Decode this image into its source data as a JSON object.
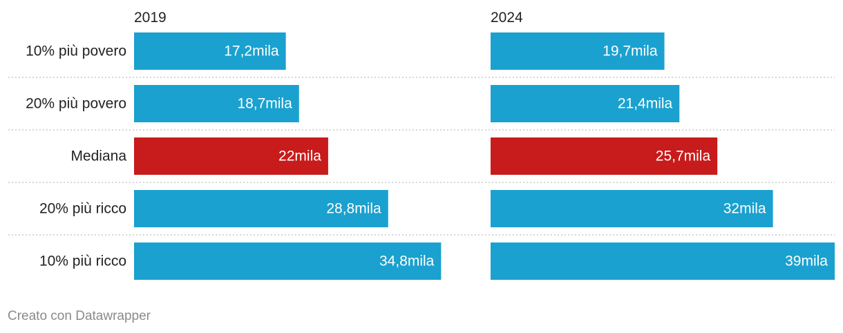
{
  "chart_data": {
    "type": "bar",
    "orientation": "horizontal",
    "categories": [
      "10% più povero",
      "20% più povero",
      "Mediana",
      "20% più ricco",
      "10% più ricco"
    ],
    "series": [
      {
        "name": "2019",
        "values": [
          17.2,
          18.7,
          22,
          28.8,
          34.8
        ],
        "labels": [
          "17,2mila",
          "18,7mila",
          "22mila",
          "28,8mila",
          "34,8mila"
        ]
      },
      {
        "name": "2024",
        "values": [
          19.7,
          21.4,
          25.7,
          32,
          39
        ],
        "labels": [
          "19,7mila",
          "21,4mila",
          "25,7mila",
          "32mila",
          "39mila"
        ]
      }
    ],
    "xlim": [
      0,
      39
    ],
    "highlight_category": "Mediana",
    "colors": {
      "default": "#1aa1cf",
      "highlight": "#c81b1b",
      "divider": "#c9c9c9"
    },
    "grid": false,
    "legend": "none"
  },
  "footer": {
    "credit": "Creato con Datawrapper"
  }
}
